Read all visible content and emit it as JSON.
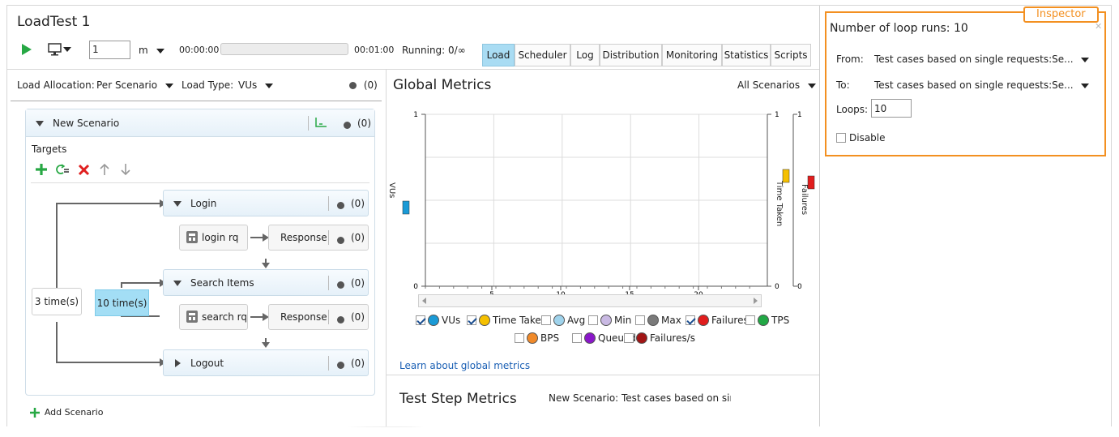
{
  "app": {
    "title": "LoadTest 1"
  },
  "toolbar": {
    "duration_value": "1",
    "duration_unit": "m",
    "elapsed": "00:00:00",
    "total": "00:01:00",
    "progress": 0,
    "running": "Running: 0/∞",
    "tabs": [
      "Load",
      "Scheduler",
      "Log",
      "Distribution",
      "Monitoring",
      "Statistics",
      "Scripts"
    ],
    "active_tab": "Load"
  },
  "left": {
    "load_allocation_label": "Load Allocation:",
    "load_allocation_value": "Per Scenario",
    "load_type_label": "Load Type:",
    "load_type_value": "VUs",
    "count": "(0)",
    "scenario": {
      "name": "New Scenario",
      "count": "(0)",
      "targets_label": "Targets",
      "outer_loop": "3 time(s)",
      "inner_loop": "10 time(s)",
      "steps": [
        {
          "name": "Login",
          "count": "(0)",
          "request": "login rq",
          "response": "Response",
          "response_count": "(0)"
        },
        {
          "name": "Search Items",
          "count": "(0)",
          "request": "search rq",
          "response": "Response",
          "response_count": "(0)"
        },
        {
          "name": "Logout",
          "count": "(0)"
        }
      ]
    },
    "add_scenario": "Add Scenario"
  },
  "metrics": {
    "title": "Global Metrics",
    "scope": "All Scenarios",
    "left_axis_label": "VUs",
    "right_axis_labels": [
      "Time Taken",
      "Failures"
    ],
    "learn_link": "Learn about global metrics",
    "step_metrics_title": "Test Step Metrics",
    "step_metrics_scope": "New Scenario: Test cases based on single requests"
  },
  "chart_data": {
    "type": "line",
    "x_ticks": [
      "5",
      "10",
      "15",
      "20"
    ],
    "y_left_ticks": [
      "0",
      "1"
    ],
    "y_right1_ticks": [
      "0",
      "1"
    ],
    "y_right2_ticks": [
      "0",
      "1"
    ],
    "ylim": [
      0,
      1
    ],
    "grid": true,
    "series": [
      {
        "name": "VUs",
        "color": "#1a9ad6",
        "checked": true,
        "values": []
      },
      {
        "name": "Time Taken",
        "color": "#f5c000",
        "checked": true,
        "values": []
      },
      {
        "name": "Avg",
        "color": "#9fd3ec",
        "checked": false,
        "values": []
      },
      {
        "name": "Min",
        "color": "#c9b9e3",
        "checked": false,
        "values": []
      },
      {
        "name": "Max",
        "color": "#7a7a7a",
        "checked": false,
        "values": []
      },
      {
        "name": "Failures",
        "color": "#e11d1d",
        "checked": true,
        "values": []
      },
      {
        "name": "TPS",
        "color": "#22a845",
        "checked": false,
        "values": []
      },
      {
        "name": "BPS",
        "color": "#f08a2a",
        "checked": false,
        "values": []
      },
      {
        "name": "Queued",
        "color": "#8a17c9",
        "checked": false,
        "values": []
      },
      {
        "name": "Failures/s",
        "color": "#a11515",
        "checked": false,
        "values": []
      }
    ]
  },
  "inspector": {
    "tag": "Inspector",
    "title": "Number of loop runs: 10",
    "from_label": "From:",
    "from_value": "Test cases based on single requests:Se...",
    "to_label": "To:",
    "to_value": "Test cases based on single requests:Se...",
    "loops_label": "Loops:",
    "loops_value": "10",
    "disable_label": "Disable",
    "disable_checked": false,
    "accent": "#f39021"
  }
}
